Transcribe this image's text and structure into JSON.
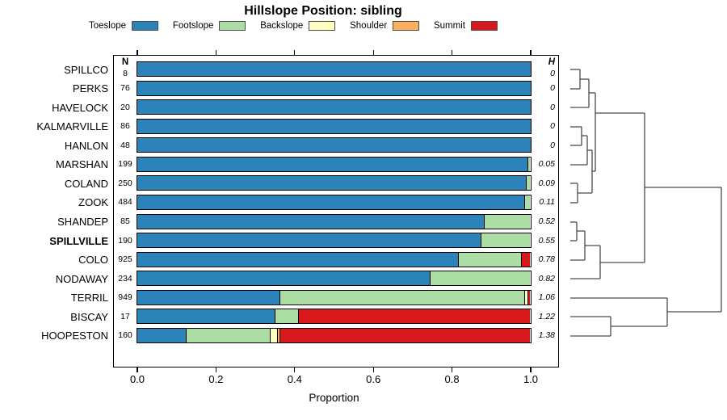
{
  "chart_data": {
    "type": "bar",
    "variant": "horizontal-stacked-proportion",
    "title": "Hillslope Position: sibling",
    "xlabel": "Proportion",
    "xlim": [
      0,
      1
    ],
    "x_tick_values": [
      0,
      0.2,
      0.4,
      0.6,
      0.8,
      1.0
    ],
    "x_tick_labels": [
      "0.0",
      "0.2",
      "0.4",
      "0.6",
      "0.8",
      "1.0"
    ],
    "n_column_header": "N",
    "h_column_header": "H",
    "series_order": [
      "Toeslope",
      "Footslope",
      "Backslope",
      "Shoulder",
      "Summit"
    ],
    "legend": [
      {
        "label": "Toeslope",
        "color": "#2B83BA"
      },
      {
        "label": "Footslope",
        "color": "#ABDDA4"
      },
      {
        "label": "Backslope",
        "color": "#FFFFBF"
      },
      {
        "label": "Shoulder",
        "color": "#FDAE61"
      },
      {
        "label": "Summit",
        "color": "#D7191C"
      }
    ],
    "rows": [
      {
        "name": "SPILLCO",
        "n": 8,
        "h": "0",
        "bold": false,
        "values": [
          1,
          0,
          0,
          0,
          0
        ]
      },
      {
        "name": "PERKS",
        "n": 76,
        "h": "0",
        "bold": false,
        "values": [
          1,
          0,
          0,
          0,
          0
        ]
      },
      {
        "name": "HAVELOCK",
        "n": 20,
        "h": "0",
        "bold": false,
        "values": [
          1,
          0,
          0,
          0,
          0
        ]
      },
      {
        "name": "KALMARVILLE",
        "n": 86,
        "h": "0",
        "bold": false,
        "values": [
          1,
          0,
          0,
          0,
          0
        ]
      },
      {
        "name": "HANLON",
        "n": 48,
        "h": "0",
        "bold": false,
        "values": [
          1,
          0,
          0,
          0,
          0
        ]
      },
      {
        "name": "MARSHAN",
        "n": 199,
        "h": "0.05",
        "bold": false,
        "values": [
          0.992,
          0.008,
          0,
          0,
          0
        ]
      },
      {
        "name": "COLAND",
        "n": 250,
        "h": "0.09",
        "bold": false,
        "values": [
          0.988,
          0.012,
          0,
          0,
          0
        ]
      },
      {
        "name": "ZOOK",
        "n": 484,
        "h": "0.11",
        "bold": false,
        "values": [
          0.985,
          0.015,
          0,
          0,
          0
        ]
      },
      {
        "name": "SHANDEP",
        "n": 85,
        "h": "0.52",
        "bold": false,
        "values": [
          0.882,
          0.118,
          0,
          0,
          0
        ]
      },
      {
        "name": "SPILLVILLE",
        "n": 190,
        "h": "0.55",
        "bold": true,
        "values": [
          0.874,
          0.126,
          0,
          0,
          0
        ]
      },
      {
        "name": "COLO",
        "n": 925,
        "h": "0.78",
        "bold": false,
        "values": [
          0.817,
          0.16,
          0,
          0,
          0.023
        ]
      },
      {
        "name": "NODAWAY",
        "n": 234,
        "h": "0.82",
        "bold": false,
        "values": [
          0.745,
          0.255,
          0,
          0,
          0
        ]
      },
      {
        "name": "TERRIL",
        "n": 949,
        "h": "1.06",
        "bold": false,
        "values": [
          0.362,
          0.623,
          0.008,
          0,
          0.007
        ]
      },
      {
        "name": "BISCAY",
        "n": 17,
        "h": "1.22",
        "bold": false,
        "values": [
          0.35,
          0.06,
          0,
          0,
          0.59
        ]
      },
      {
        "name": "HOOPESTON",
        "n": 160,
        "h": "1.38",
        "bold": false,
        "values": [
          0.125,
          0.213,
          0.019,
          0.006,
          0.637
        ]
      }
    ],
    "dendrogram": {
      "line_color": "#4a4a4a",
      "segments": [
        [
          706,
          86,
          718,
          86
        ],
        [
          706,
          110,
          718,
          110
        ],
        [
          718,
          86,
          718,
          110
        ],
        [
          718,
          98,
          729,
          98
        ],
        [
          706,
          133,
          729,
          133
        ],
        [
          729,
          98,
          729,
          133
        ],
        [
          729,
          115,
          737,
          115
        ],
        [
          706,
          157,
          720,
          157
        ],
        [
          706,
          180,
          720,
          180
        ],
        [
          720,
          157,
          720,
          180
        ],
        [
          720,
          168,
          727,
          168
        ],
        [
          706,
          204,
          727,
          204
        ],
        [
          727,
          168,
          727,
          204
        ],
        [
          727,
          186,
          733,
          186
        ],
        [
          706,
          227,
          715,
          227
        ],
        [
          706,
          251,
          715,
          251
        ],
        [
          715,
          227,
          715,
          251
        ],
        [
          715,
          239,
          733,
          239
        ],
        [
          733,
          186,
          733,
          239
        ],
        [
          733,
          212,
          737,
          212
        ],
        [
          737,
          115,
          737,
          212
        ],
        [
          737,
          140,
          798,
          140
        ],
        [
          706,
          275,
          714,
          275
        ],
        [
          706,
          298,
          714,
          298
        ],
        [
          714,
          275,
          714,
          298
        ],
        [
          714,
          286,
          724,
          286
        ],
        [
          706,
          322,
          724,
          322
        ],
        [
          724,
          286,
          724,
          322
        ],
        [
          724,
          304,
          743,
          304
        ],
        [
          706,
          345,
          743,
          345
        ],
        [
          743,
          304,
          743,
          345
        ],
        [
          743,
          325,
          798,
          325
        ],
        [
          798,
          140,
          798,
          325
        ],
        [
          798,
          232,
          893,
          232
        ],
        [
          706,
          369,
          826,
          369
        ],
        [
          706,
          392,
          756,
          392
        ],
        [
          706,
          416,
          756,
          416
        ],
        [
          756,
          392,
          756,
          416
        ],
        [
          756,
          404,
          826,
          404
        ],
        [
          826,
          369,
          826,
          404
        ],
        [
          826,
          386,
          893,
          386
        ],
        [
          893,
          232,
          893,
          386
        ]
      ]
    }
  }
}
